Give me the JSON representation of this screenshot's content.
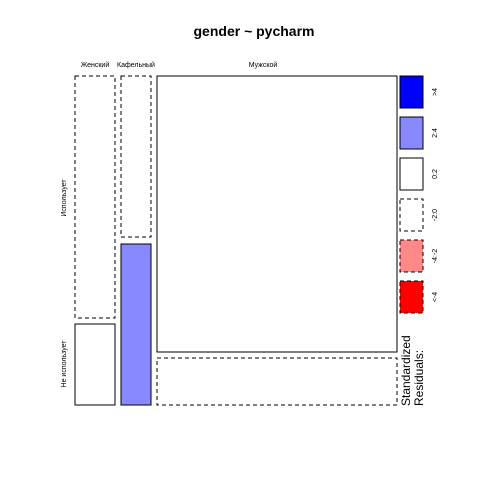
{
  "chart_data": {
    "type": "mosaic",
    "title": "gender ~ pycharm",
    "columns": [
      "Женский",
      "Кафельный",
      "Мужской"
    ],
    "rows": [
      "Использует",
      "Не использует"
    ],
    "cells": [
      {
        "column": "Женский",
        "row": "Использует",
        "residual_bin": "-2:0"
      },
      {
        "column": "Женский",
        "row": "Не использует",
        "residual_bin": "0:2"
      },
      {
        "column": "Кафельный",
        "row": "Использует",
        "residual_bin": "-2:0"
      },
      {
        "column": "Кафельный",
        "row": "Не использует",
        "residual_bin": "2:4"
      },
      {
        "column": "Мужской",
        "row": "Использует",
        "residual_bin": "0:2"
      },
      {
        "column": "Мужской",
        "row": "Не использует",
        "residual_bin": "-2:0"
      }
    ],
    "legend": {
      "title_line1": "Standardized",
      "title_line2": "Residuals:",
      "placement": "right",
      "bins": [
        {
          "label": ">4",
          "fill": "#0000ff",
          "dashed": false
        },
        {
          "label": "2:4",
          "fill": "#8888ff",
          "dashed": false
        },
        {
          "label": "0:2",
          "fill": "#ffffff",
          "dashed": false
        },
        {
          "label": "-2:0",
          "fill": "#ffffff",
          "dashed": true
        },
        {
          "label": "-4:-2",
          "fill": "#ff8888",
          "dashed": true
        },
        {
          "label": "<-4",
          "fill": "#ff0000",
          "dashed": true
        }
      ]
    }
  }
}
